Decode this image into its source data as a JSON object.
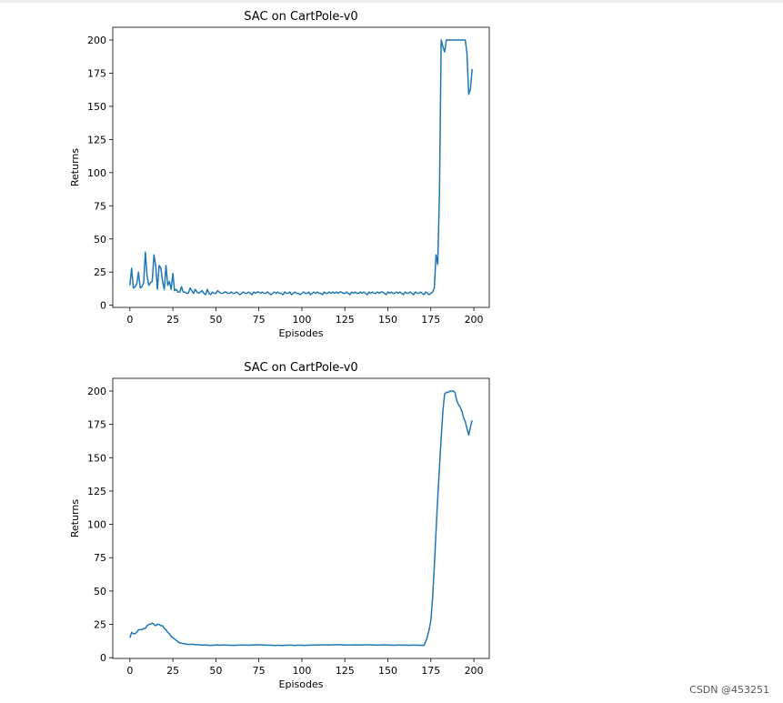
{
  "chart_data": [
    {
      "type": "line",
      "title": "SAC on CartPole-v0",
      "x_label": "Episodes",
      "y_label": "Returns",
      "color": "#1f77b4",
      "x": [
        0,
        1,
        2,
        3,
        4,
        5,
        6,
        7,
        8,
        9,
        10,
        11,
        12,
        13,
        14,
        15,
        16,
        17,
        18,
        19,
        20,
        21,
        22,
        23,
        24,
        25,
        26,
        27,
        28,
        29,
        30,
        31,
        32,
        33,
        34,
        35,
        36,
        37,
        38,
        39,
        40,
        41,
        42,
        43,
        44,
        45,
        46,
        47,
        48,
        49,
        50,
        51,
        52,
        53,
        54,
        55,
        56,
        57,
        58,
        59,
        60,
        61,
        62,
        63,
        64,
        65,
        66,
        67,
        68,
        69,
        70,
        71,
        72,
        73,
        74,
        75,
        76,
        77,
        78,
        79,
        80,
        81,
        82,
        83,
        84,
        85,
        86,
        87,
        88,
        89,
        90,
        91,
        92,
        93,
        94,
        95,
        96,
        97,
        98,
        99,
        100,
        101,
        102,
        103,
        104,
        105,
        106,
        107,
        108,
        109,
        110,
        111,
        112,
        113,
        114,
        115,
        116,
        117,
        118,
        119,
        120,
        121,
        122,
        123,
        124,
        125,
        126,
        127,
        128,
        129,
        130,
        131,
        132,
        133,
        134,
        135,
        136,
        137,
        138,
        139,
        140,
        141,
        142,
        143,
        144,
        145,
        146,
        147,
        148,
        149,
        150,
        151,
        152,
        153,
        154,
        155,
        156,
        157,
        158,
        159,
        160,
        161,
        162,
        163,
        164,
        165,
        166,
        167,
        168,
        169,
        170,
        171,
        172,
        173,
        174,
        175,
        176,
        177,
        178,
        179,
        180,
        181,
        182,
        183,
        184,
        185,
        186,
        187,
        188,
        189,
        190,
        191,
        192,
        193,
        194,
        195,
        196,
        197,
        198,
        199
      ],
      "values": [
        15,
        28,
        13,
        14,
        16,
        25,
        13,
        14,
        17,
        40,
        22,
        15,
        17,
        18,
        38,
        30,
        12,
        30,
        28,
        18,
        12,
        30,
        15,
        18,
        12,
        24,
        11,
        12,
        10,
        10,
        14,
        10,
        10,
        9,
        9,
        13,
        11,
        9,
        12,
        10,
        9,
        10,
        11,
        9,
        8,
        12,
        9,
        8,
        10,
        9,
        9,
        11,
        10,
        9,
        9,
        10,
        10,
        9,
        9,
        10,
        9,
        9,
        10,
        9,
        8,
        9,
        10,
        9,
        9,
        10,
        9,
        8,
        10,
        9,
        10,
        10,
        9,
        10,
        9,
        9,
        10,
        9,
        8,
        9,
        10,
        9,
        10,
        9,
        9,
        8,
        10,
        9,
        9,
        10,
        8,
        9,
        10,
        9,
        9,
        8,
        9,
        10,
        9,
        9,
        10,
        8,
        9,
        10,
        9,
        10,
        9,
        9,
        8,
        10,
        9,
        9,
        10,
        9,
        10,
        9,
        10,
        9,
        10,
        10,
        9,
        9,
        10,
        9,
        8,
        10,
        9,
        10,
        9,
        9,
        10,
        9,
        10,
        9,
        8,
        10,
        9,
        10,
        9,
        9,
        10,
        9,
        10,
        10,
        9,
        8,
        10,
        9,
        10,
        9,
        9,
        10,
        9,
        10,
        9,
        8,
        10,
        9,
        9,
        10,
        9,
        8,
        10,
        9,
        9,
        10,
        9,
        8,
        10,
        9,
        8,
        9,
        10,
        13,
        38,
        31,
        85,
        200,
        195,
        191,
        200,
        200,
        200,
        200,
        200,
        200,
        200,
        200,
        200,
        200,
        200,
        200,
        190,
        159,
        163,
        178
      ],
      "xlim": [
        -9.95,
        208.95
      ],
      "ylim": [
        -1.6,
        209.6
      ],
      "xticks": [
        0,
        25,
        50,
        75,
        100,
        125,
        150,
        175,
        200
      ],
      "yticks": [
        0,
        25,
        50,
        75,
        100,
        125,
        150,
        175,
        200
      ]
    },
    {
      "type": "line",
      "title": "SAC on CartPole-v0",
      "x_label": "Episodes",
      "y_label": "Returns",
      "color": "#1f77b4",
      "x": [
        0,
        1,
        2,
        3,
        4,
        5,
        6,
        7,
        8,
        9,
        10,
        11,
        12,
        13,
        14,
        15,
        16,
        17,
        18,
        19,
        20,
        21,
        22,
        23,
        24,
        25,
        26,
        27,
        28,
        29,
        30,
        31,
        32,
        33,
        34,
        35,
        36,
        37,
        38,
        39,
        40,
        41,
        42,
        43,
        44,
        45,
        46,
        47,
        48,
        49,
        50,
        51,
        52,
        53,
        54,
        55,
        56,
        57,
        58,
        59,
        60,
        61,
        62,
        63,
        64,
        65,
        66,
        67,
        68,
        69,
        70,
        71,
        72,
        73,
        74,
        75,
        76,
        77,
        78,
        79,
        80,
        81,
        82,
        83,
        84,
        85,
        86,
        87,
        88,
        89,
        90,
        91,
        92,
        93,
        94,
        95,
        96,
        97,
        98,
        99,
        100,
        101,
        102,
        103,
        104,
        105,
        106,
        107,
        108,
        109,
        110,
        111,
        112,
        113,
        114,
        115,
        116,
        117,
        118,
        119,
        120,
        121,
        122,
        123,
        124,
        125,
        126,
        127,
        128,
        129,
        130,
        131,
        132,
        133,
        134,
        135,
        136,
        137,
        138,
        139,
        140,
        141,
        142,
        143,
        144,
        145,
        146,
        147,
        148,
        149,
        150,
        151,
        152,
        153,
        154,
        155,
        156,
        157,
        158,
        159,
        160,
        161,
        162,
        163,
        164,
        165,
        166,
        167,
        168,
        169,
        170,
        171,
        172,
        173,
        174,
        175,
        176,
        177,
        178,
        179,
        180,
        181,
        182,
        183,
        184,
        185,
        186,
        187,
        188,
        189,
        190,
        191,
        192,
        193,
        194,
        195,
        196,
        197,
        198,
        199
      ],
      "values": [
        15,
        19,
        18,
        18,
        19,
        21,
        21,
        21,
        22,
        22,
        24,
        25,
        25,
        26,
        25,
        24,
        25,
        25,
        24,
        24,
        22,
        21,
        19,
        18,
        16,
        15,
        14,
        13,
        12,
        11,
        11,
        10.5,
        10.5,
        10,
        10,
        10,
        10,
        10,
        9.8,
        9.8,
        9.7,
        9.6,
        9.5,
        9.5,
        9.5,
        9.4,
        9.3,
        9.2,
        9.3,
        9.4,
        9.5,
        9.5,
        9.4,
        9.4,
        9.5,
        9.5,
        9.4,
        9.4,
        9.3,
        9.3,
        9.2,
        9.3,
        9.3,
        9.4,
        9.4,
        9.5,
        9.5,
        9.4,
        9.4,
        9.3,
        9.4,
        9.5,
        9.6,
        9.7,
        9.7,
        9.6,
        9.6,
        9.5,
        9.5,
        9.4,
        9.4,
        9.3,
        9.3,
        9.3,
        9.2,
        9.2,
        9.3,
        9.3,
        9.2,
        9.2,
        9.3,
        9.3,
        9.4,
        9.4,
        9.3,
        9.3,
        9.2,
        9.3,
        9.3,
        9.4,
        9.3,
        9.3,
        9.2,
        9.3,
        9.4,
        9.4,
        9.4,
        9.5,
        9.5,
        9.5,
        9.6,
        9.7,
        9.7,
        9.6,
        9.6,
        9.5,
        9.5,
        9.6,
        9.7,
        9.7,
        9.8,
        9.8,
        9.7,
        9.7,
        9.6,
        9.6,
        9.5,
        9.5,
        9.5,
        9.6,
        9.6,
        9.6,
        9.6,
        9.5,
        9.5,
        9.6,
        9.6,
        9.7,
        9.7,
        9.6,
        9.6,
        9.5,
        9.5,
        9.5,
        9.4,
        9.5,
        9.5,
        9.6,
        9.6,
        9.5,
        9.5,
        9.5,
        9.4,
        9.4,
        9.3,
        9.4,
        9.5,
        9.5,
        9.4,
        9.4,
        9.4,
        9.4,
        9.3,
        9.3,
        9.4,
        9.4,
        9.4,
        9.3,
        9.3,
        9.3,
        9.2,
        9.3,
        12,
        16,
        21,
        28,
        45,
        68,
        95,
        120,
        143,
        165,
        185,
        198,
        199,
        199,
        200,
        200,
        200,
        199,
        193,
        190,
        188,
        185,
        180,
        177,
        172,
        167,
        173,
        178
      ],
      "xlim": [
        -9.95,
        208.95
      ],
      "ylim": [
        -0.55,
        209.55
      ],
      "xticks": [
        0,
        25,
        50,
        75,
        100,
        125,
        150,
        175,
        200
      ],
      "yticks": [
        0,
        25,
        50,
        75,
        100,
        125,
        150,
        175,
        200
      ]
    }
  ],
  "watermark": "CSDN @453251"
}
